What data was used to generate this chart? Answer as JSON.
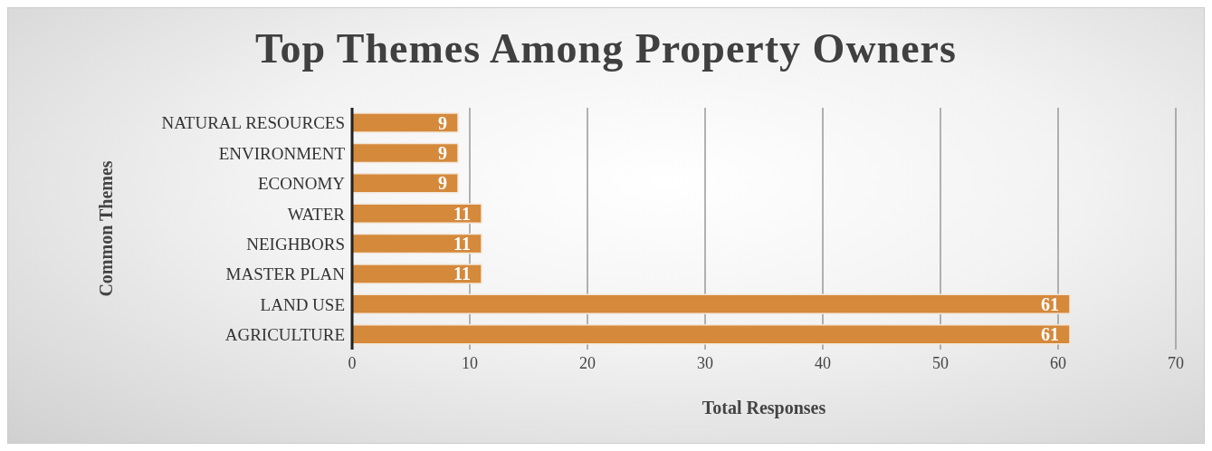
{
  "chart_data": {
    "type": "bar",
    "orientation": "horizontal",
    "title": "Top Themes Among Property Owners",
    "xlabel": "Total Responses",
    "ylabel": "Common Themes",
    "categories": [
      "NATURAL RESOURCES",
      "ENVIRONMENT",
      "ECONOMY",
      "WATER",
      "NEIGHBORS",
      "MASTER PLAN",
      "LAND USE",
      "AGRICULTURE"
    ],
    "values": [
      9,
      9,
      9,
      11,
      11,
      11,
      61,
      61
    ],
    "color": "#d4893b",
    "xlim": [
      0,
      70
    ],
    "xticks": [
      0,
      10,
      20,
      30,
      40,
      50,
      60,
      70
    ],
    "grid": "x",
    "data_labels": true
  }
}
